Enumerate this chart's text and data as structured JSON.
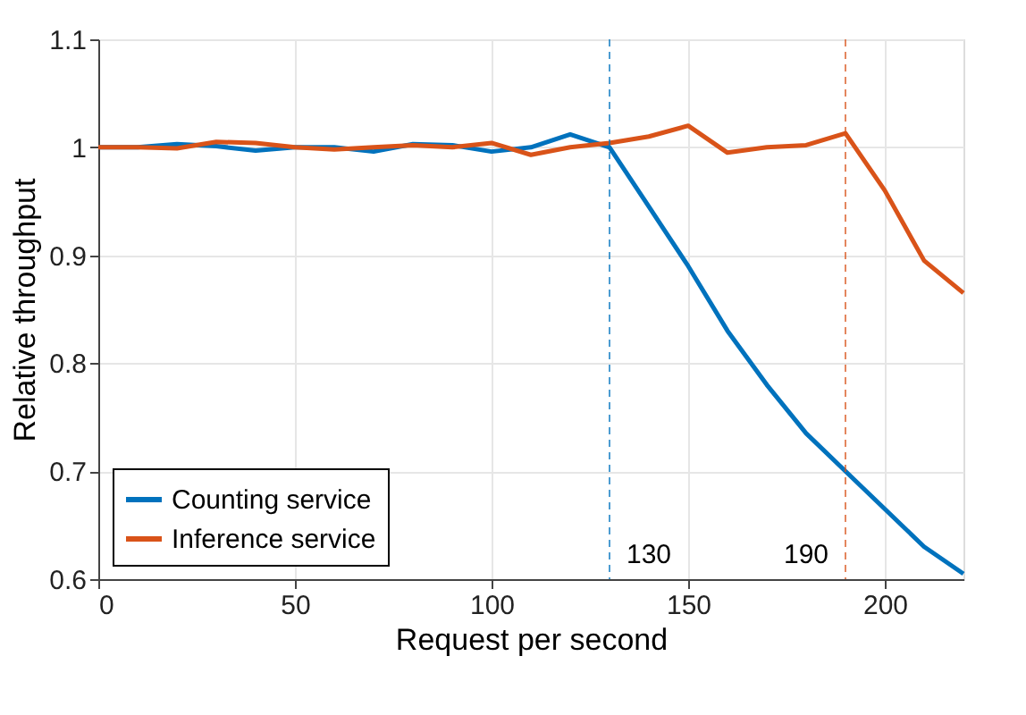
{
  "chart_data": {
    "type": "line",
    "xlabel": "Request per second",
    "ylabel": "Relative throughput",
    "x": [
      0,
      10,
      20,
      30,
      40,
      50,
      60,
      70,
      80,
      90,
      100,
      110,
      120,
      130,
      140,
      150,
      160,
      170,
      180,
      190,
      200,
      210,
      220
    ],
    "series": [
      {
        "name": "Counting service",
        "color": "#0072bd",
        "values": [
          1.0,
          1.0,
          1.003,
          1.001,
          0.997,
          1.0,
          1.0,
          0.996,
          1.003,
          1.002,
          0.996,
          1.0,
          1.012,
          1.0,
          0.945,
          0.89,
          0.83,
          0.78,
          0.735,
          0.7,
          0.665,
          0.63,
          0.605
        ]
      },
      {
        "name": "Inference service",
        "color": "#d95319",
        "values": [
          1.0,
          1.0,
          0.999,
          1.005,
          1.004,
          1.0,
          0.998,
          1.0,
          1.002,
          1.0,
          1.004,
          0.993,
          1.0,
          1.004,
          1.01,
          1.02,
          0.995,
          1.0,
          1.002,
          1.013,
          0.96,
          0.895,
          0.865
        ]
      }
    ],
    "xlim": [
      0,
      220
    ],
    "ylim": [
      0.6,
      1.1
    ],
    "xticks": [
      0,
      50,
      100,
      150,
      200
    ],
    "yticks": [
      0.6,
      0.7,
      0.8,
      0.9,
      1,
      1.1
    ],
    "ref_lines": [
      {
        "axis": "x",
        "value": 130,
        "label": "130",
        "color": "#0072bd",
        "line_style": "dashed"
      },
      {
        "axis": "x",
        "value": 190,
        "label": "190",
        "color": "#d95319",
        "line_style": "dashed"
      }
    ],
    "grid": true,
    "legend": "bottom left",
    "line_style": "solid",
    "marker": "none"
  }
}
